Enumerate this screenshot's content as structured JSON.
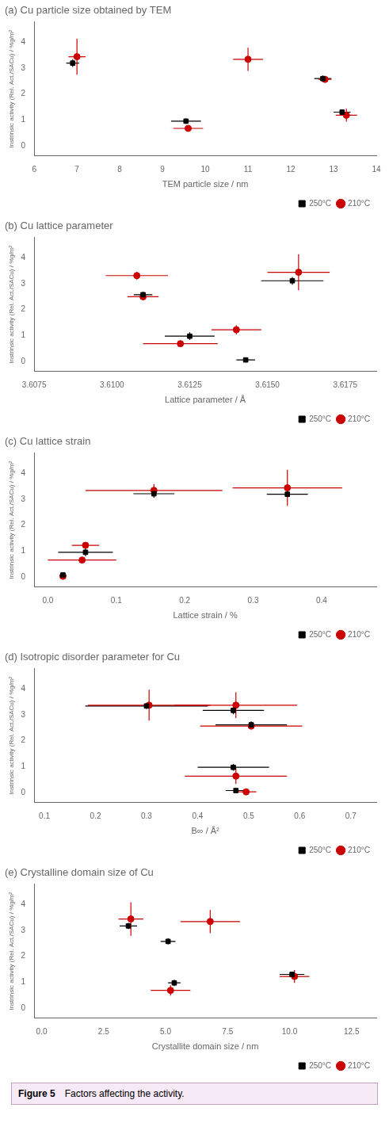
{
  "chart_data": [
    {
      "type": "scatter",
      "title": "(a) Cu particle size obtained by TEM",
      "x_label": "TEM particle size / nm",
      "y_label": "Instrinsic activity (Rel. Act./SACu) / %g/m²",
      "xlim": [
        6,
        14
      ],
      "ylim": [
        -0.4,
        4.8
      ],
      "xticks": [
        6,
        7,
        8,
        9,
        10,
        11,
        12,
        13,
        14
      ],
      "yticks": [
        0,
        1,
        2,
        3,
        4
      ],
      "grid": false,
      "legend": "lower right",
      "series": [
        {
          "name": "250°C",
          "color": "#000000",
          "marker": "square",
          "x": [
            6.9,
            9.55,
            12.75,
            13.2
          ],
          "y": [
            3.2,
            0.95,
            2.6,
            1.3
          ],
          "xerr": [
            0.15,
            0.35,
            0.2,
            0.2
          ],
          "yerr": [
            0.15,
            0.1,
            0.12,
            0.1
          ]
        },
        {
          "name": "210°C",
          "color": "#CC0000",
          "marker": "circle",
          "x": [
            7.0,
            9.6,
            11.0,
            12.8,
            13.3
          ],
          "y": [
            3.45,
            0.67,
            3.35,
            2.57,
            1.18
          ],
          "xerr": [
            0.2,
            0.35,
            0.35,
            0.15,
            0.25
          ],
          "yerr": [
            0.7,
            0.1,
            0.45,
            0.12,
            0.25
          ]
        }
      ]
    },
    {
      "type": "scatter",
      "title": "(b) Cu lattice parameter",
      "x_label": "Lattice parameter / Å",
      "y_label": "Instrinsic activity (Rel. Act./SACu) / %g/m²",
      "xlim": [
        3.6075,
        3.6185
      ],
      "ylim": [
        -0.4,
        4.8
      ],
      "xticks": [
        3.6075,
        {
          "value": 3.61,
          "label": "3.6100"
        },
        3.6125,
        {
          "value": 3.615,
          "label": "3.6150"
        },
        3.6175
      ],
      "yticks": [
        0,
        1,
        2,
        3,
        4
      ],
      "grid": false,
      "legend": "lower right",
      "series": [
        {
          "name": "250°C",
          "color": "#000000",
          "marker": "square",
          "x": [
            3.611,
            3.6125,
            3.6158,
            3.6143
          ],
          "y": [
            2.58,
            0.97,
            3.12,
            0.05
          ],
          "xerr": [
            0.0003,
            0.0008,
            0.001,
            0.0003
          ],
          "yerr": [
            0.12,
            0.15,
            0.15,
            0.05
          ]
        },
        {
          "name": "210°C",
          "color": "#CC0000",
          "marker": "circle",
          "x": [
            3.6108,
            3.611,
            3.6122,
            3.614,
            3.616
          ],
          "y": [
            3.32,
            2.5,
            0.68,
            1.22,
            3.45
          ],
          "xerr": [
            0.001,
            0.0005,
            0.0012,
            0.0008,
            0.001
          ],
          "yerr": [
            0.15,
            0.12,
            0.1,
            0.18,
            0.7
          ]
        }
      ]
    },
    {
      "type": "scatter",
      "title": "(c) Cu lattice strain",
      "x_label": "Lattice strain / %",
      "y_label": "Instrinsic activity (Rel. Act./SACu) / %g/m²",
      "xlim": [
        -0.02,
        0.48
      ],
      "ylim": [
        -0.4,
        4.8
      ],
      "xticks": [
        {
          "value": 0.0,
          "label": "0.0"
        },
        0.1,
        0.2,
        0.3,
        0.4
      ],
      "yticks": [
        0,
        1,
        2,
        3,
        4
      ],
      "grid": false,
      "legend": "lower right",
      "series": [
        {
          "name": "250°C",
          "color": "#000000",
          "marker": "square",
          "x": [
            0.022,
            0.055,
            0.155,
            0.35
          ],
          "y": [
            0.07,
            0.95,
            3.22,
            3.2
          ],
          "xerr": [
            0.005,
            0.04,
            0.03,
            0.03
          ],
          "yerr": [
            0.05,
            0.15,
            0.15,
            0.12
          ]
        },
        {
          "name": "210°C",
          "color": "#CC0000",
          "marker": "circle",
          "x": [
            0.022,
            0.055,
            0.05,
            0.155,
            0.35
          ],
          "y": [
            0.02,
            1.22,
            0.65,
            3.35,
            3.45
          ],
          "xerr": [
            0.005,
            0.02,
            0.05,
            0.1,
            0.08
          ],
          "yerr": [
            0.05,
            0.12,
            0.1,
            0.25,
            0.7
          ]
        }
      ]
    },
    {
      "type": "scatter",
      "title": "(d) Isotropic disorder parameter for Cu",
      "x_label": "B∞ / Å²",
      "y_label": "Instrinsic activity (Rel. Act./SACu) / %g/m²",
      "xlim": [
        0.08,
        0.75
      ],
      "ylim": [
        -0.4,
        4.8
      ],
      "xticks": [
        0.1,
        0.2,
        0.3,
        0.4,
        0.5,
        0.6,
        0.7
      ],
      "yticks": [
        0,
        1,
        2,
        3,
        4
      ],
      "grid": false,
      "legend": "lower right",
      "series": [
        {
          "name": "250°C",
          "color": "#000000",
          "marker": "square",
          "x": [
            0.3,
            0.47,
            0.505,
            0.47,
            0.475
          ],
          "y": [
            3.35,
            3.18,
            2.62,
            0.97,
            0.07
          ],
          "xerr": [
            0.12,
            0.06,
            0.07,
            0.07,
            0.02
          ],
          "yerr": [
            0.12,
            0.15,
            0.13,
            0.13,
            0.05
          ]
        },
        {
          "name": "210°C",
          "color": "#CC0000",
          "marker": "circle",
          "x": [
            0.305,
            0.475,
            0.505,
            0.475,
            0.495
          ],
          "y": [
            3.38,
            3.38,
            2.57,
            0.63,
            0.02
          ],
          "xerr": [
            0.12,
            0.12,
            0.1,
            0.1,
            0.02
          ],
          "yerr": [
            0.6,
            0.5,
            0.12,
            0.3,
            0.03
          ]
        }
      ]
    },
    {
      "type": "scatter",
      "title": "(e) Crystalline domain size of Cu",
      "x_label": "Crystallite domain size / nm",
      "y_label": "Instrinsic activity (Rel. Act./SACu) / %g/m²",
      "xlim": [
        -0.3,
        13.5
      ],
      "ylim": [
        -0.4,
        4.8
      ],
      "xticks": [
        {
          "value": 0.0,
          "label": "0.0"
        },
        2.5,
        {
          "value": 5.0,
          "label": "5.0"
        },
        7.5,
        {
          "value": 10.0,
          "label": "10.0"
        },
        12.5
      ],
      "yticks": [
        0,
        1,
        2,
        3,
        4
      ],
      "grid": false,
      "legend": "lower right",
      "series": [
        {
          "name": "250°C",
          "color": "#000000",
          "marker": "square",
          "x": [
            3.5,
            5.1,
            5.35,
            10.1
          ],
          "y": [
            3.18,
            2.58,
            0.97,
            1.3
          ],
          "xerr": [
            0.35,
            0.3,
            0.25,
            0.5
          ],
          "yerr": [
            0.12,
            0.12,
            0.12,
            0.1
          ]
        },
        {
          "name": "210°C",
          "color": "#CC0000",
          "marker": "circle",
          "x": [
            3.6,
            6.8,
            5.2,
            10.2
          ],
          "y": [
            3.45,
            3.35,
            0.68,
            1.22
          ],
          "xerr": [
            0.5,
            1.2,
            0.8,
            0.6
          ],
          "yerr": [
            0.65,
            0.45,
            0.2,
            0.25
          ]
        }
      ]
    }
  ],
  "caption": {
    "bold": "Figure 5",
    "text": "Factors affecting the activity."
  }
}
